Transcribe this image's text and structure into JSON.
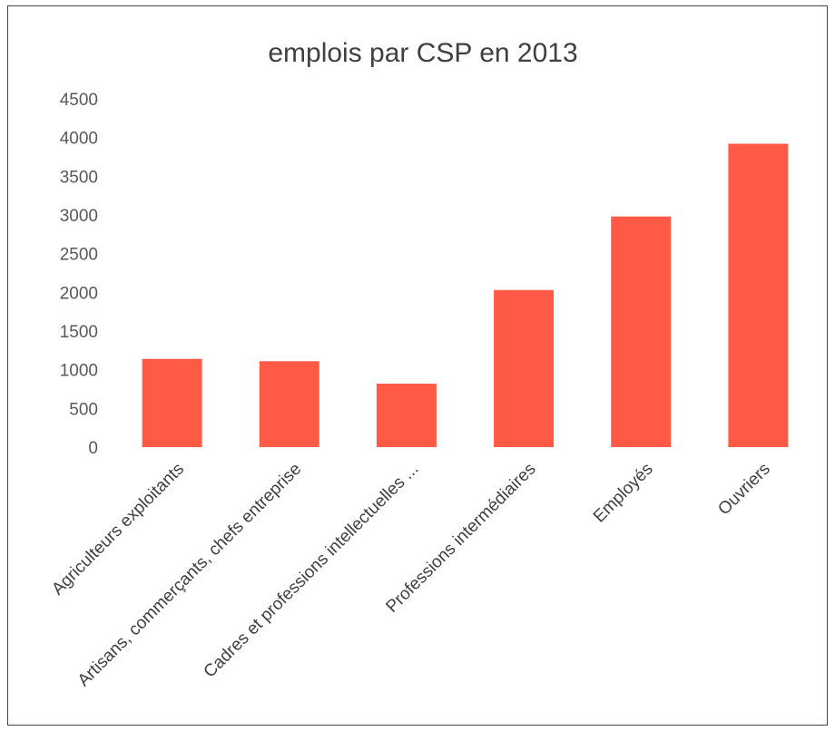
{
  "chart_data": {
    "type": "bar",
    "title": "emplois par CSP en 2013",
    "xlabel": "",
    "ylabel": "",
    "categories": [
      "Agriculteurs exploitants",
      "Artisans, commerçants, chefs entreprise",
      "Cadres et professions intellectuelles ...",
      "Professions intermédiaires",
      "Employés",
      "Ouvriers"
    ],
    "values": [
      1140,
      1110,
      820,
      2030,
      2980,
      3920
    ],
    "ylim": [
      0,
      4500
    ],
    "yticks": [
      "0",
      "500",
      "1000",
      "1500",
      "2000",
      "2500",
      "3000",
      "3500",
      "4000",
      "4500"
    ],
    "grid": false,
    "legend": "none",
    "bar_color": "#ff5a45"
  }
}
